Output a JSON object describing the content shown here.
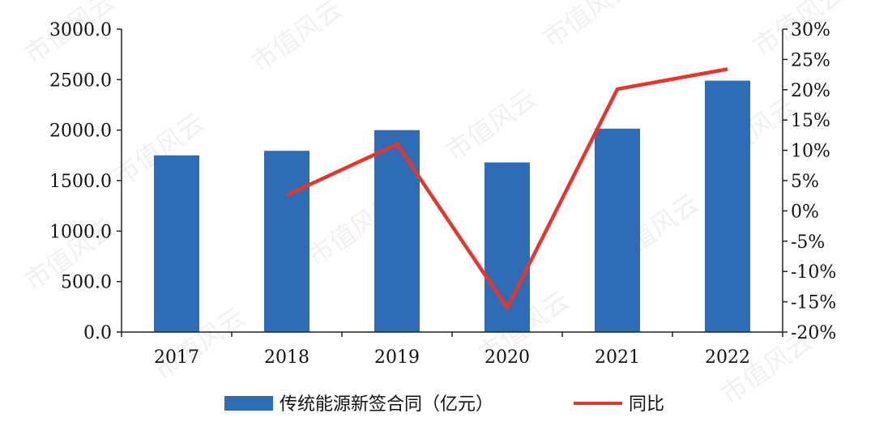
{
  "watermark": "市值风云",
  "chart_data": {
    "type": "bar+line",
    "categories": [
      "2017",
      "2018",
      "2019",
      "2020",
      "2021",
      "2022"
    ],
    "series": [
      {
        "name": "传统能源新签合同（亿元）",
        "type": "bar",
        "axis": "left",
        "color": "#2e6db5",
        "values": [
          1750,
          1795,
          2000,
          1680,
          2015,
          2490
        ]
      },
      {
        "name": "同比",
        "type": "line",
        "axis": "right",
        "color": "#e8352b",
        "values": [
          null,
          2.6,
          11.0,
          -16.0,
          20.1,
          23.4
        ]
      }
    ],
    "y_left": {
      "min": 0,
      "max": 3000,
      "step": 500,
      "tick_labels": [
        "0.0",
        "500.0",
        "1000.0",
        "1500.0",
        "2000.0",
        "2500.0",
        "3000.0"
      ]
    },
    "y_right": {
      "min": -20,
      "max": 30,
      "step": 5,
      "tick_labels": [
        "-20%",
        "-15%",
        "-10%",
        "-5%",
        "0%",
        "5%",
        "10%",
        "15%",
        "20%",
        "25%",
        "30%"
      ]
    },
    "grid": false,
    "legend": "bottom"
  }
}
